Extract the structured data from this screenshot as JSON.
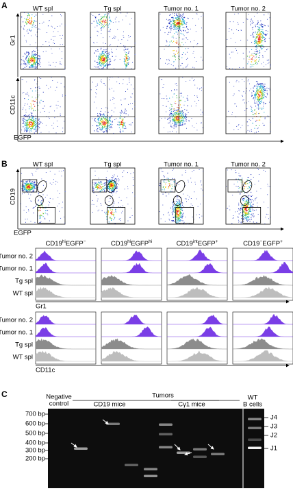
{
  "panel_a": {
    "letter": "A",
    "columns": [
      "WT spl",
      "Tg spl",
      "Tumor no. 1",
      "Tumor no. 2"
    ],
    "y_labels": [
      "Gr1",
      "CD11c"
    ],
    "x_label": "EGFP"
  },
  "panel_b": {
    "letter": "B",
    "columns": [
      "WT spl",
      "Tg spl",
      "Tumor no. 1",
      "Tumor no. 2"
    ],
    "y_label": "CD19",
    "x_label": "EGFP",
    "histogram_columns": [
      [
        "CD19",
        "hi",
        "EGFP",
        "−"
      ],
      [
        "CD19",
        "hi",
        "EGFP",
        "hi"
      ],
      [
        "CD19",
        "int",
        "EGFP",
        "+"
      ],
      [
        "CD19",
        "−",
        "EGFP",
        "+"
      ]
    ],
    "histogram_rows": [
      "Tumor no. 2",
      "Tumor no. 1",
      "Tg spl",
      "WT spl"
    ],
    "histogram_markers": [
      "Gr1",
      "CD11c"
    ]
  },
  "panel_c": {
    "letter": "C",
    "negative_control": [
      "Negative",
      "control"
    ],
    "tumors": "Tumors",
    "groups": [
      "CD19 mice",
      "Cγ1 mice"
    ],
    "wt": [
      "WT",
      "B cells"
    ],
    "size_markers": [
      "700 bp",
      "600 bp",
      "500 bp",
      "400 bp",
      "300 bp",
      "200 bp"
    ],
    "j_labels": [
      "J4",
      "J3",
      "J2",
      "J1"
    ]
  }
}
